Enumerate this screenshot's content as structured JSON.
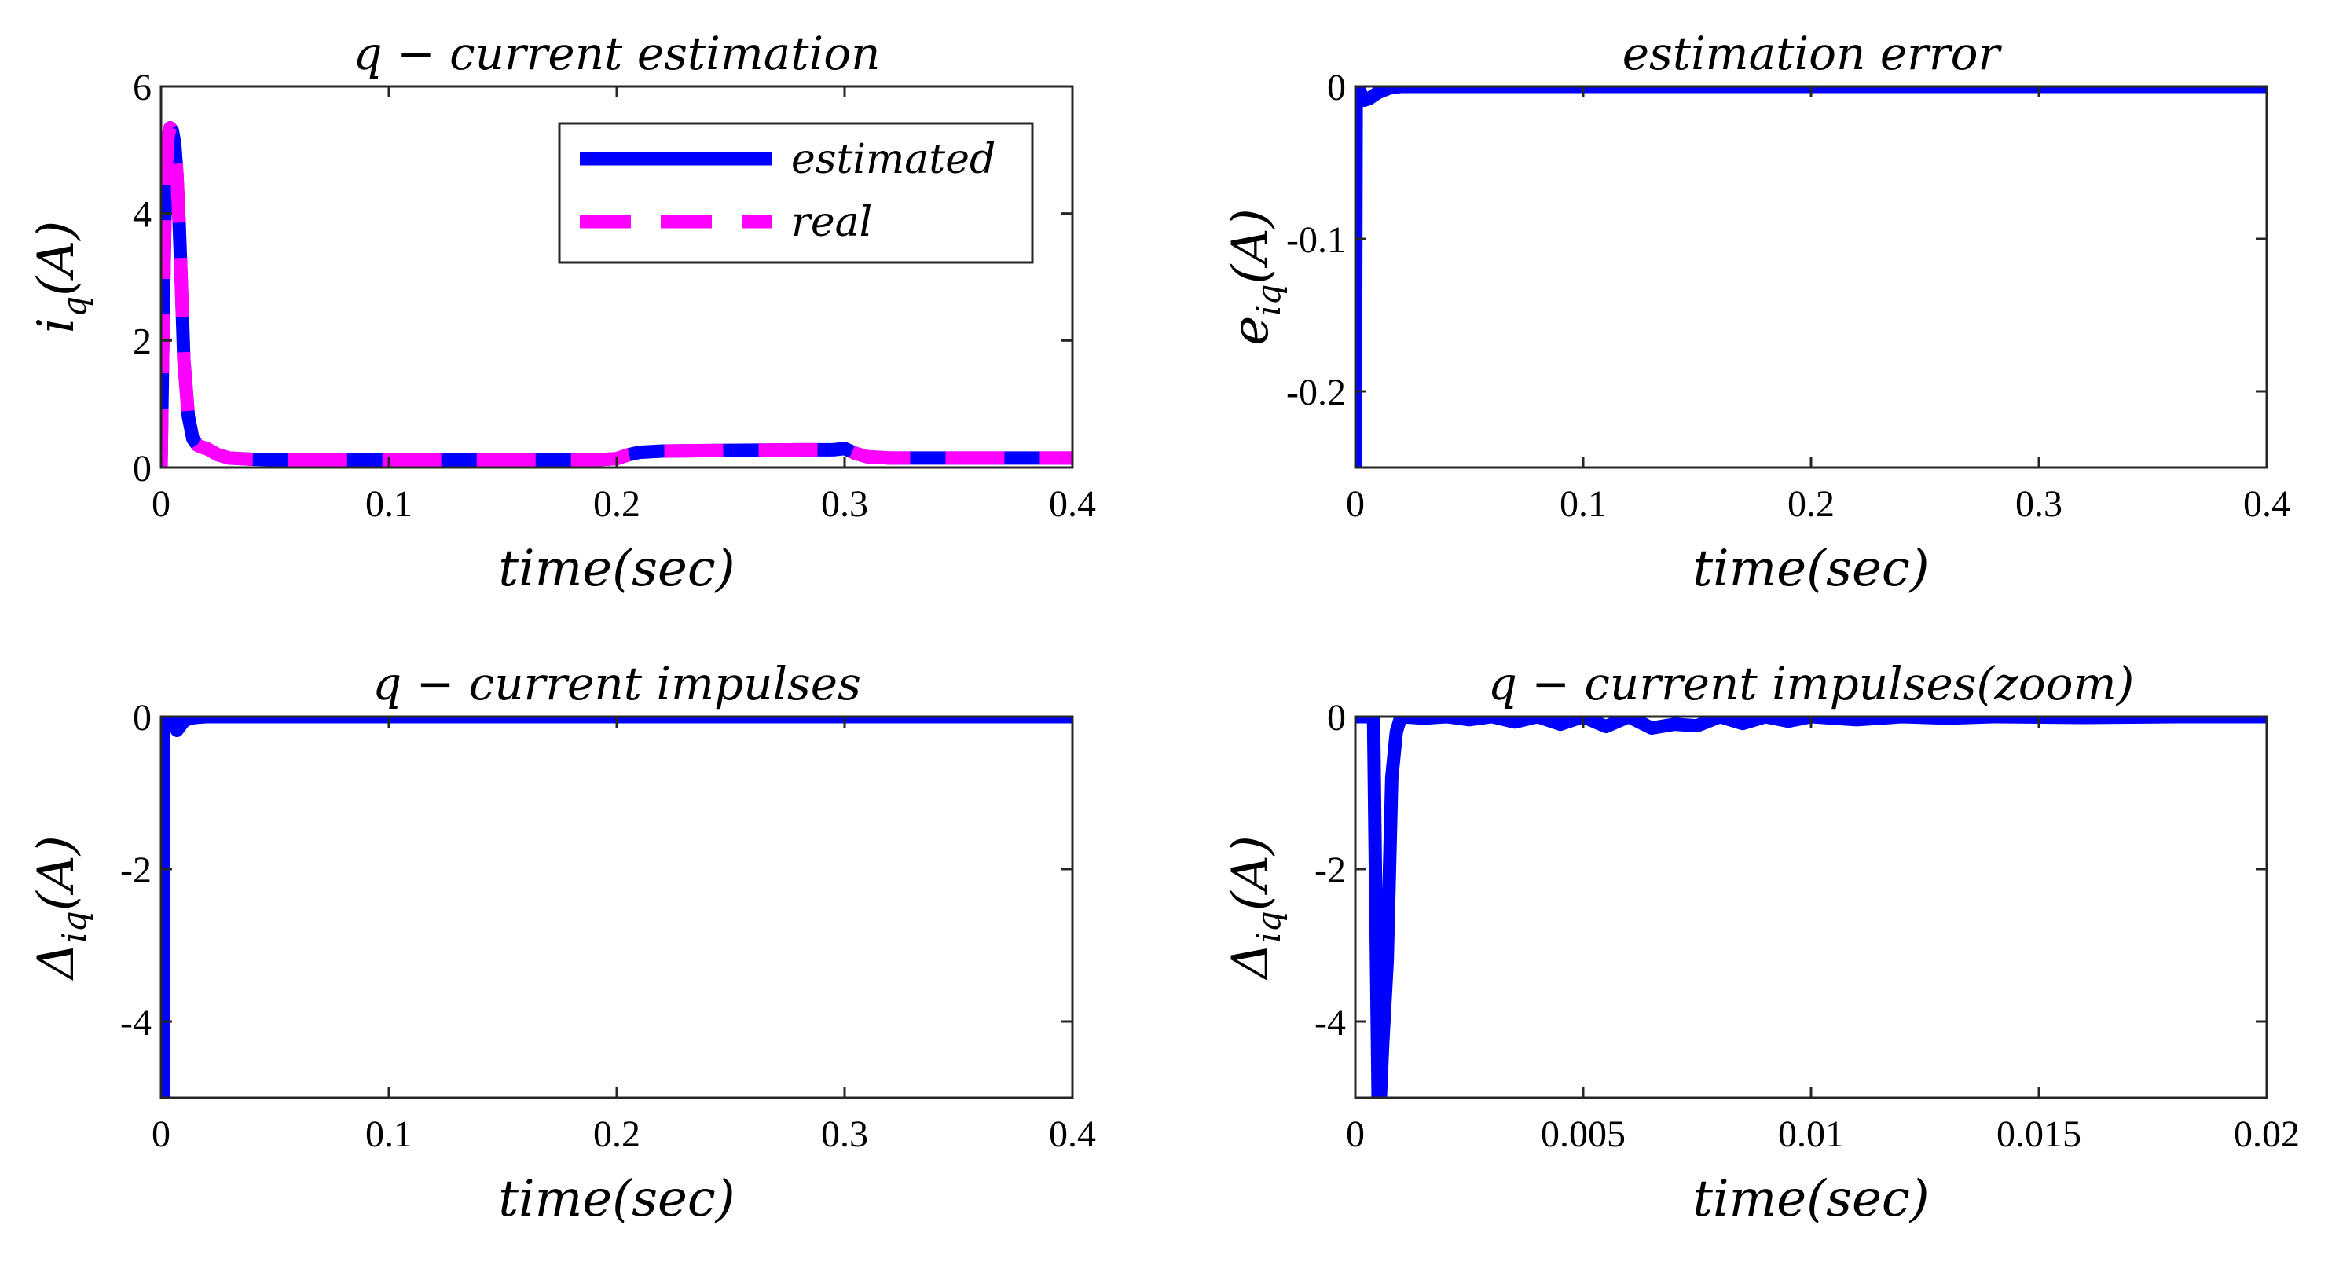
{
  "chart_data": [
    {
      "id": "p1",
      "type": "line",
      "title": "q − current estimation",
      "xlabel": "time(sec)",
      "ylabel_main": "i",
      "ylabel_sub": "q",
      "ylabel_tail": "(A)",
      "xlim": [
        0,
        0.4
      ],
      "ylim": [
        0,
        6
      ],
      "xticks": [
        0,
        0.1,
        0.2,
        0.3,
        0.4
      ],
      "xtick_labels": [
        "0",
        "0.1",
        "0.2",
        "0.3",
        "0.4"
      ],
      "yticks": [
        0,
        2,
        4,
        6
      ],
      "ytick_labels": [
        "0",
        "2",
        "4",
        "6"
      ],
      "legend": {
        "position": "top-right",
        "entries": [
          "estimated",
          "real"
        ]
      },
      "series": [
        {
          "name": "estimated",
          "color": "#0000FF",
          "style": "solid",
          "x": [
            0,
            0.001,
            0.002,
            0.003,
            0.004,
            0.005,
            0.006,
            0.007,
            0.008,
            0.009,
            0.01,
            0.012,
            0.014,
            0.016,
            0.018,
            0.02,
            0.025,
            0.03,
            0.035,
            0.04,
            0.05,
            0.1,
            0.15,
            0.19,
            0.2,
            0.205,
            0.21,
            0.22,
            0.25,
            0.28,
            0.29,
            0.295,
            0.3,
            0.305,
            0.31,
            0.32,
            0.35,
            0.4
          ],
          "y": [
            0,
            2.5,
            4.5,
            5.2,
            5.35,
            5.3,
            5.1,
            4.6,
            3.8,
            2.8,
            1.7,
            0.8,
            0.45,
            0.35,
            0.32,
            0.3,
            0.2,
            0.15,
            0.14,
            0.13,
            0.12,
            0.12,
            0.12,
            0.12,
            0.14,
            0.2,
            0.24,
            0.26,
            0.27,
            0.28,
            0.28,
            0.28,
            0.3,
            0.22,
            0.17,
            0.15,
            0.15,
            0.15
          ]
        },
        {
          "name": "real",
          "color": "#FF00FF",
          "style": "dashed",
          "x": [
            0,
            0.001,
            0.002,
            0.003,
            0.004,
            0.005,
            0.006,
            0.007,
            0.008,
            0.009,
            0.01,
            0.012,
            0.014,
            0.016,
            0.018,
            0.02,
            0.025,
            0.03,
            0.035,
            0.04,
            0.05,
            0.1,
            0.15,
            0.19,
            0.2,
            0.205,
            0.21,
            0.22,
            0.25,
            0.28,
            0.29,
            0.295,
            0.3,
            0.305,
            0.31,
            0.32,
            0.35,
            0.4
          ],
          "y": [
            0,
            2.5,
            4.5,
            5.2,
            5.35,
            5.3,
            5.1,
            4.6,
            3.8,
            2.8,
            1.7,
            0.8,
            0.45,
            0.35,
            0.32,
            0.3,
            0.2,
            0.15,
            0.14,
            0.13,
            0.12,
            0.12,
            0.12,
            0.12,
            0.14,
            0.2,
            0.24,
            0.26,
            0.27,
            0.28,
            0.28,
            0.28,
            0.3,
            0.22,
            0.17,
            0.15,
            0.15,
            0.15
          ]
        }
      ]
    },
    {
      "id": "p2",
      "type": "line",
      "title": "estimation error",
      "xlabel": "time(sec)",
      "ylabel_main": "e",
      "ylabel_sub": "iq",
      "ylabel_tail": "(A)",
      "xlim": [
        0,
        0.4
      ],
      "ylim": [
        -0.25,
        0
      ],
      "xticks": [
        0,
        0.1,
        0.2,
        0.3,
        0.4
      ],
      "xtick_labels": [
        "0",
        "0.1",
        "0.2",
        "0.3",
        "0.4"
      ],
      "yticks": [
        0,
        -0.1,
        -0.2
      ],
      "ytick_labels": [
        "0",
        "-0.1",
        "-0.2"
      ],
      "series": [
        {
          "name": "error",
          "color": "#0000FF",
          "style": "solid",
          "x": [
            0,
            0.0004,
            0.0012,
            0.002,
            0.003,
            0.004,
            0.006,
            0.008,
            0.01,
            0.015,
            0.02,
            0.4
          ],
          "y": [
            -0.25,
            0,
            0,
            -0.003,
            -0.007,
            -0.009,
            -0.008,
            -0.006,
            -0.004,
            -0.001,
            0,
            0
          ]
        }
      ]
    },
    {
      "id": "p3",
      "type": "line",
      "title": "q − current impulses",
      "xlabel": "time(sec)",
      "ylabel_main": "Δ",
      "ylabel_sub": "iq",
      "ylabel_tail": "(A)",
      "xlim": [
        0,
        0.4
      ],
      "ylim": [
        -5,
        0
      ],
      "xticks": [
        0,
        0.1,
        0.2,
        0.3,
        0.4
      ],
      "xtick_labels": [
        "0",
        "0.1",
        "0.2",
        "0.3",
        "0.4"
      ],
      "yticks": [
        0,
        -2,
        -4
      ],
      "ytick_labels": [
        "0",
        "-2",
        "-4"
      ],
      "series": [
        {
          "name": "impulses",
          "color": "#0000FF",
          "style": "solid",
          "x": [
            0,
            0.0005,
            0.0009,
            0.0012,
            0.002,
            0.004,
            0.006,
            0.007,
            0.008,
            0.01,
            0.012,
            0.015,
            0.02,
            0.4
          ],
          "y": [
            0,
            0,
            -5,
            0,
            0,
            -0.03,
            -0.12,
            -0.18,
            -0.14,
            -0.06,
            -0.03,
            -0.01,
            0,
            0
          ]
        }
      ]
    },
    {
      "id": "p4",
      "type": "line",
      "title": "q − current impulses(zoom)",
      "xlabel": "time(sec)",
      "ylabel_main": "Δ",
      "ylabel_sub": "iq",
      "ylabel_tail": "(A)",
      "xlim": [
        0,
        0.02
      ],
      "ylim": [
        -5,
        0
      ],
      "xticks": [
        0,
        0.005,
        0.01,
        0.015,
        0.02
      ],
      "xtick_labels": [
        "0",
        "0.005",
        "0.01",
        "0.015",
        "0.02"
      ],
      "yticks": [
        0,
        -2,
        -4
      ],
      "ytick_labels": [
        "0",
        "-2",
        "-4"
      ],
      "series": [
        {
          "name": "impulses zoom",
          "color": "#0000FF",
          "style": "solid",
          "x": [
            0,
            0.0004,
            0.0005,
            0.00055,
            0.0006,
            0.0007,
            0.00075,
            0.0008,
            0.0009,
            0.001,
            0.0015,
            0.002,
            0.0025,
            0.003,
            0.0035,
            0.004,
            0.0045,
            0.005,
            0.0055,
            0.006,
            0.0065,
            0.007,
            0.0075,
            0.008,
            0.0085,
            0.009,
            0.0095,
            0.01,
            0.011,
            0.012,
            0.013,
            0.014,
            0.016,
            0.018,
            0.02
          ],
          "y": [
            0,
            0,
            -5,
            -5,
            -4.3,
            -3.2,
            -2.0,
            -0.8,
            -0.2,
            0,
            -0.02,
            0,
            -0.04,
            0,
            -0.07,
            0,
            -0.1,
            0,
            -0.13,
            0,
            -0.15,
            -0.1,
            -0.12,
            0,
            -0.09,
            0,
            -0.06,
            0,
            -0.04,
            0,
            -0.02,
            0,
            -0.01,
            0,
            0
          ]
        }
      ]
    }
  ]
}
